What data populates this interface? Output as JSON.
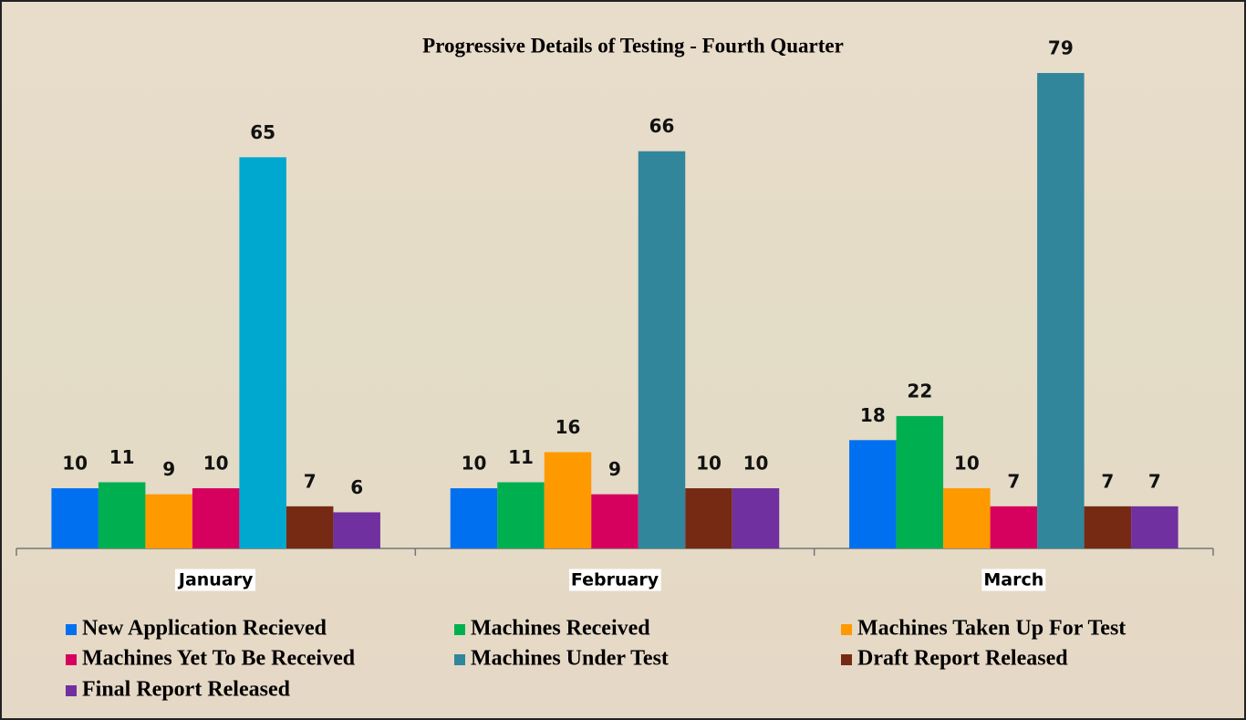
{
  "chart_data": {
    "type": "bar",
    "title": "Progressive Details of Testing - Fourth Quarter",
    "categories": [
      "January",
      "February",
      "March"
    ],
    "series": [
      {
        "name": "New Application Recieved",
        "color": "#0070f0",
        "values": [
          10,
          10,
          18
        ]
      },
      {
        "name": "Machines Received",
        "color": "#00b050",
        "values": [
          11,
          11,
          22
        ]
      },
      {
        "name": "Machines Taken Up For Test",
        "color": "#ff9900",
        "values": [
          9,
          16,
          10
        ]
      },
      {
        "name": "Machines Yet To Be  Received",
        "color": "#d6005f",
        "values": [
          10,
          9,
          7
        ]
      },
      {
        "name": "Machines Under Test",
        "color": "#31869b",
        "colors": [
          "#00a7cf",
          "#31869b",
          "#31869b"
        ],
        "values": [
          65,
          66,
          79
        ]
      },
      {
        "name": "Draft Report Released",
        "color": "#762a14",
        "values": [
          7,
          10,
          7
        ]
      },
      {
        "name": "Final Report Released",
        "color": "#7030a0",
        "values": [
          6,
          10,
          7
        ]
      }
    ],
    "data_labels": true
  }
}
